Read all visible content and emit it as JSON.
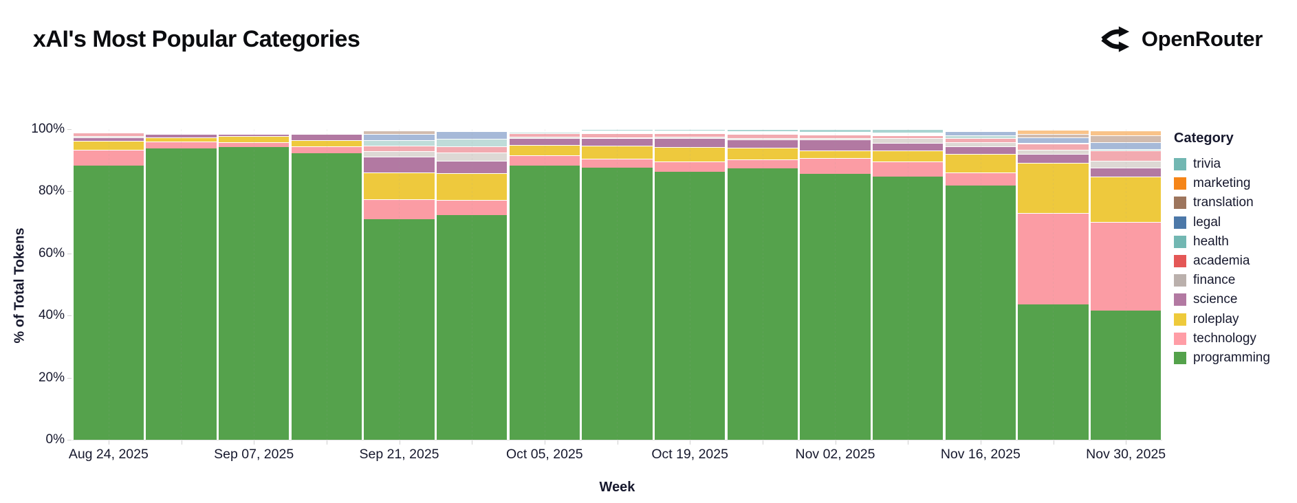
{
  "header": {
    "title": "xAI's Most Popular Categories",
    "brand": "OpenRouter"
  },
  "chart_data": {
    "type": "bar",
    "variant": "stacked-normalized-column",
    "title": "xAI's Most Popular Categories",
    "xlabel": "Week",
    "ylabel": "% of Total Tokens",
    "ylim": [
      0,
      100
    ],
    "y_ticks": [
      "0%",
      "20%",
      "40%",
      "60%",
      "80%",
      "100%"
    ],
    "legend_title": "Category",
    "legend_position": "right",
    "categories": [
      "Aug 24, 2025",
      "Aug 31, 2025",
      "Sep 07, 2025",
      "Sep 14, 2025",
      "Sep 21, 2025",
      "Sep 28, 2025",
      "Oct 05, 2025",
      "Oct 12, 2025",
      "Oct 19, 2025",
      "Oct 26, 2025",
      "Nov 02, 2025",
      "Nov 09, 2025",
      "Nov 16, 2025",
      "Nov 23, 2025",
      "Nov 30, 2025"
    ],
    "x_tick_labels": [
      "Aug 24, 2025",
      "Sep 07, 2025",
      "Sep 21, 2025",
      "Oct 05, 2025",
      "Oct 19, 2025",
      "Nov 02, 2025",
      "Nov 16, 2025",
      "Nov 30, 2025"
    ],
    "series": [
      {
        "name": "trivia",
        "color": "#72b7b2",
        "fill": "#a9d4d1",
        "values": [
          0.2,
          0.1,
          0.05,
          0.05,
          0.2,
          0.2,
          0.3,
          0.5,
          0.4,
          0.7,
          0.8,
          1.0,
          0.2,
          0.2,
          0.3
        ]
      },
      {
        "name": "marketing",
        "color": "#f58518",
        "fill": "#f9c389",
        "values": [
          0.1,
          0.05,
          0.02,
          0.05,
          0.2,
          0.1,
          0.1,
          0.1,
          0.1,
          0.1,
          0.1,
          0.1,
          0.1,
          1.3,
          1.6
        ]
      },
      {
        "name": "translation",
        "color": "#9d755d",
        "fill": "#d1bbae",
        "values": [
          0.1,
          0.1,
          0.03,
          0.05,
          1.2,
          0.2,
          0.1,
          0.1,
          0.1,
          0.1,
          0.1,
          0.1,
          0.2,
          1.1,
          2.2
        ]
      },
      {
        "name": "legal",
        "color": "#4c78a8",
        "fill": "#a6b9d8",
        "values": [
          0.2,
          0.1,
          0.05,
          0.05,
          1.8,
          2.4,
          0.2,
          0.1,
          0.2,
          0.1,
          0.1,
          0.1,
          1.3,
          1.8,
          2.2
        ]
      },
      {
        "name": "health",
        "color": "#72b7b2",
        "fill": "#bfdcd9",
        "values": [
          0.2,
          0.1,
          0.05,
          0.1,
          1.9,
          2.4,
          0.3,
          0.2,
          0.3,
          0.2,
          0.2,
          0.2,
          1.0,
          0.2,
          0.4
        ]
      },
      {
        "name": "academia",
        "color": "#e45756",
        "fill": "#f2aab0",
        "values": [
          1.2,
          0.3,
          0.2,
          0.3,
          1.8,
          2.0,
          1.2,
          1.3,
          1.1,
          1.3,
          1.3,
          0.9,
          1.2,
          1.9,
          3.3
        ]
      },
      {
        "name": "finance",
        "color": "#bab0ac",
        "fill": "#ddd8d4",
        "values": [
          0.3,
          0.1,
          0.1,
          0.2,
          1.8,
          2.8,
          0.4,
          0.3,
          0.5,
          0.5,
          0.4,
          1.7,
          1.3,
          1.4,
          2.2
        ]
      },
      {
        "name": "science",
        "color": "#b279a2",
        "fill": "#b279a2",
        "values": [
          1.1,
          1.0,
          0.6,
          2.0,
          5.0,
          3.9,
          2.2,
          2.4,
          2.7,
          2.6,
          3.5,
          2.5,
          2.6,
          3.0,
          2.9
        ]
      },
      {
        "name": "roleplay",
        "color": "#eeca3b",
        "fill": "#eec93d",
        "values": [
          3.0,
          1.3,
          2.0,
          1.9,
          8.7,
          8.7,
          3.3,
          4.1,
          4.8,
          3.7,
          2.4,
          3.5,
          5.9,
          16.1,
          14.6
        ]
      },
      {
        "name": "technology",
        "color": "#ff9da6",
        "fill": "#fb9ca4",
        "values": [
          5.1,
          2.4,
          1.6,
          2.2,
          6.3,
          4.8,
          3.4,
          3.0,
          3.3,
          3.0,
          5.2,
          4.8,
          4.1,
          29.4,
          28.5
        ]
      },
      {
        "name": "programming",
        "color": "#54a24b",
        "fill": "#55a24c",
        "values": [
          88.5,
          94.5,
          95.3,
          93.1,
          71.1,
          72.6,
          88.5,
          87.9,
          86.5,
          87.7,
          85.9,
          85.1,
          82.1,
          43.7,
          41.7
        ]
      }
    ]
  }
}
